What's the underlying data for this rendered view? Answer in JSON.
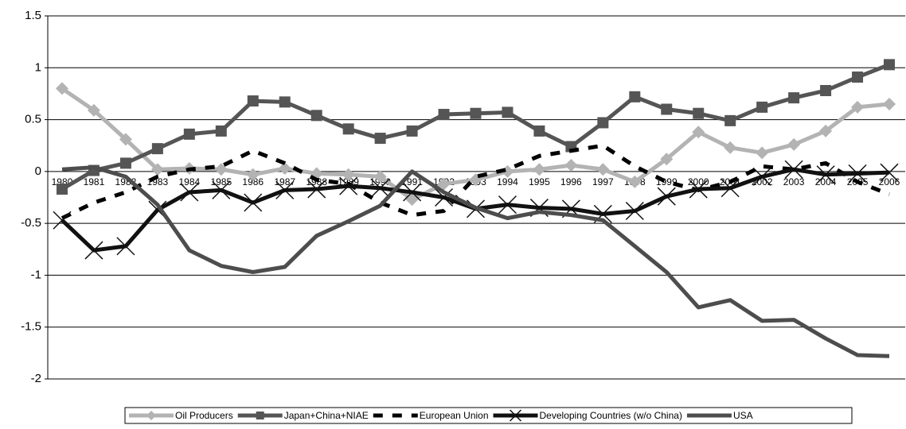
{
  "chart_data": {
    "type": "line",
    "categories": [
      "1980",
      "1981",
      "1982",
      "1983",
      "1984",
      "1985",
      "1986",
      "1987",
      "1988",
      "1989",
      "1990",
      "1991",
      "1992",
      "1993",
      "1994",
      "1995",
      "1996",
      "1997",
      "1998",
      "1999",
      "2000",
      "2001",
      "2002",
      "2003",
      "2004",
      "2005",
      "2006"
    ],
    "series": [
      {
        "name": "Oil Producers",
        "color": "#b3b3b3",
        "marker": "diamond",
        "dash": false,
        "values": [
          0.8,
          0.59,
          0.31,
          0.02,
          0.03,
          0.02,
          -0.03,
          0.03,
          -0.02,
          -0.03,
          -0.05,
          -0.27,
          -0.12,
          -0.08,
          0.0,
          0.02,
          0.06,
          0.02,
          -0.1,
          0.12,
          0.38,
          0.23,
          0.18,
          0.26,
          0.39,
          0.62,
          0.65
        ]
      },
      {
        "name": "Japan+China+NIAE",
        "color": "#555555",
        "marker": "square",
        "dash": false,
        "values": [
          -0.17,
          0.01,
          0.08,
          0.22,
          0.36,
          0.39,
          0.68,
          0.67,
          0.54,
          0.41,
          0.32,
          0.39,
          0.55,
          0.56,
          0.57,
          0.39,
          0.24,
          0.47,
          0.72,
          0.6,
          0.56,
          0.49,
          0.62,
          0.71,
          0.78,
          0.91,
          1.03
        ]
      },
      {
        "name": "European Union",
        "color": "#000000",
        "marker": "none",
        "dash": true,
        "values": [
          -0.45,
          -0.3,
          -0.2,
          -0.05,
          0.02,
          0.05,
          0.2,
          0.08,
          -0.08,
          -0.12,
          -0.3,
          -0.42,
          -0.38,
          -0.05,
          0.02,
          0.15,
          0.2,
          0.25,
          0.05,
          -0.1,
          -0.18,
          -0.1,
          0.05,
          0.02,
          0.08,
          -0.1,
          -0.22
        ]
      },
      {
        "name": "Developing Countries (w/o China)",
        "color": "#111111",
        "marker": "x",
        "dash": false,
        "values": [
          -0.47,
          -0.76,
          -0.72,
          -0.37,
          -0.2,
          -0.18,
          -0.3,
          -0.18,
          -0.17,
          -0.14,
          -0.16,
          -0.2,
          -0.25,
          -0.36,
          -0.32,
          -0.35,
          -0.36,
          -0.41,
          -0.38,
          -0.24,
          -0.17,
          -0.16,
          -0.05,
          0.02,
          -0.03,
          -0.02,
          -0.01
        ]
      },
      {
        "name": "USA",
        "color": "#4d4d4d",
        "marker": "none",
        "dash": false,
        "values": [
          0.02,
          0.04,
          -0.05,
          -0.32,
          -0.76,
          -0.91,
          -0.97,
          -0.92,
          -0.62,
          -0.48,
          -0.33,
          0.0,
          -0.2,
          -0.35,
          -0.45,
          -0.39,
          -0.42,
          -0.47,
          -0.72,
          -0.97,
          -1.31,
          -1.24,
          -1.44,
          -1.43,
          -1.61,
          -1.77,
          -1.78
        ]
      }
    ],
    "ylim": [
      -2,
      1.5
    ],
    "yticks": [
      -2,
      -1.5,
      -1,
      -0.5,
      0,
      0.5,
      1,
      1.5
    ],
    "grid": true,
    "legend": "bottom"
  }
}
